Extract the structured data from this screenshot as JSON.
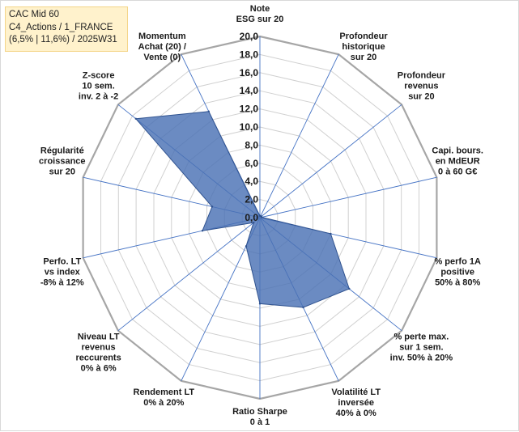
{
  "info_box": {
    "line1": "CAC Mid 60",
    "line2": "C4_Actions / 1_FRANCE",
    "line3": "(6,5% | 11,6%) / 2025W31"
  },
  "colors": {
    "grid": "#b3b3b3",
    "spoke": "#4472c4",
    "fill": "#4a72b5",
    "stroke": "#2f528f"
  },
  "chart_data": {
    "type": "radar",
    "rlim": [
      0,
      20
    ],
    "grid": true,
    "tick_labels": [
      "0,0",
      "2,0",
      "4,0",
      "6,0",
      "8,0",
      "10,0",
      "12,0",
      "14,0",
      "16,0",
      "18,0",
      "20,0"
    ],
    "axes": [
      {
        "lines": [
          "Note",
          "ESG sur 20"
        ]
      },
      {
        "lines": [
          "Profondeur",
          "historique",
          "sur 20"
        ]
      },
      {
        "lines": [
          "Profondeur",
          "revenus",
          "sur 20"
        ]
      },
      {
        "lines": [
          "Capi. bours.",
          "en MdEUR",
          "0 à 60 G€"
        ]
      },
      {
        "lines": [
          "% perfo 1A",
          "positive",
          "50% à 80%"
        ]
      },
      {
        "lines": [
          "% perte max.",
          "sur 1 sem.",
          "inv. 50% à 20%"
        ]
      },
      {
        "lines": [
          "Volatilité LT",
          "inversée",
          "40% à 0%"
        ]
      },
      {
        "lines": [
          "Ratio Sharpe",
          "0 à 1"
        ]
      },
      {
        "lines": [
          "Rendement LT",
          "0% à 20%"
        ]
      },
      {
        "lines": [
          "Niveau LT",
          "revenus",
          "reccurents",
          "0% à 6%"
        ]
      },
      {
        "lines": [
          "Perfo. LT",
          "vs index",
          "-8% à 12%"
        ]
      },
      {
        "lines": [
          "Régularité",
          "croissance",
          "sur 20"
        ]
      },
      {
        "lines": [
          "Z-score",
          "10 sem.",
          "inv. 2 à -2"
        ]
      },
      {
        "lines": [
          "Momentum",
          "Achat (20) /",
          "Vente (0)"
        ]
      }
    ],
    "values": [
      0.2,
      0.2,
      0.2,
      0.2,
      8.0,
      12.6,
      11.0,
      9.5,
      3.5,
      0.9,
      6.5,
      5.4,
      17.5,
      13.0
    ]
  }
}
